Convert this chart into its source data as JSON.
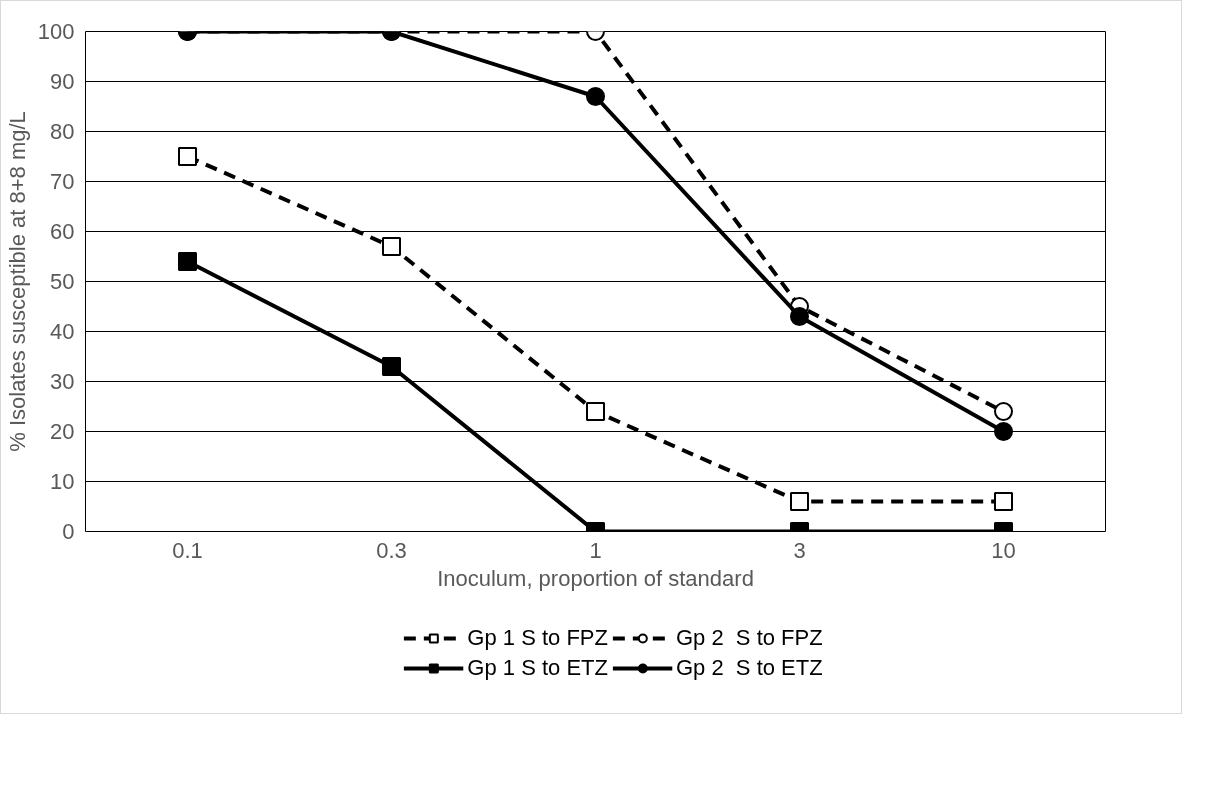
{
  "chart_data": {
    "type": "line",
    "xlabel": "Inoculum, proportion of standard",
    "ylabel": "% Isolates susceptible at 8+8 mg/L",
    "categories": [
      "0.1",
      "0.3",
      "1",
      "3",
      "10"
    ],
    "ylim": [
      0,
      100
    ],
    "yticks": [
      0,
      10,
      20,
      30,
      40,
      50,
      60,
      70,
      80,
      90,
      100
    ],
    "grid": "y",
    "legend": "bottom",
    "series": [
      {
        "name": "Gp 1 S to FPZ",
        "color": "#000000",
        "values": [
          75,
          57,
          24,
          6,
          6
        ],
        "marker": "square",
        "line_style": "dashed"
      },
      {
        "name": "Gp 2  S to FPZ",
        "color": "#000000",
        "values": [
          100,
          100,
          100,
          45,
          24
        ],
        "marker": "circle",
        "line_style": "dashed"
      },
      {
        "name": "Gp 1 S to ETZ",
        "color": "#000000",
        "values": [
          54,
          33,
          0,
          0,
          0
        ],
        "marker": "square",
        "line_style": "solid"
      },
      {
        "name": "Gp 2  S to ETZ",
        "color": "#000000",
        "values": [
          100,
          100,
          87,
          43,
          20
        ],
        "marker": "circle",
        "line_style": "solid"
      }
    ]
  }
}
